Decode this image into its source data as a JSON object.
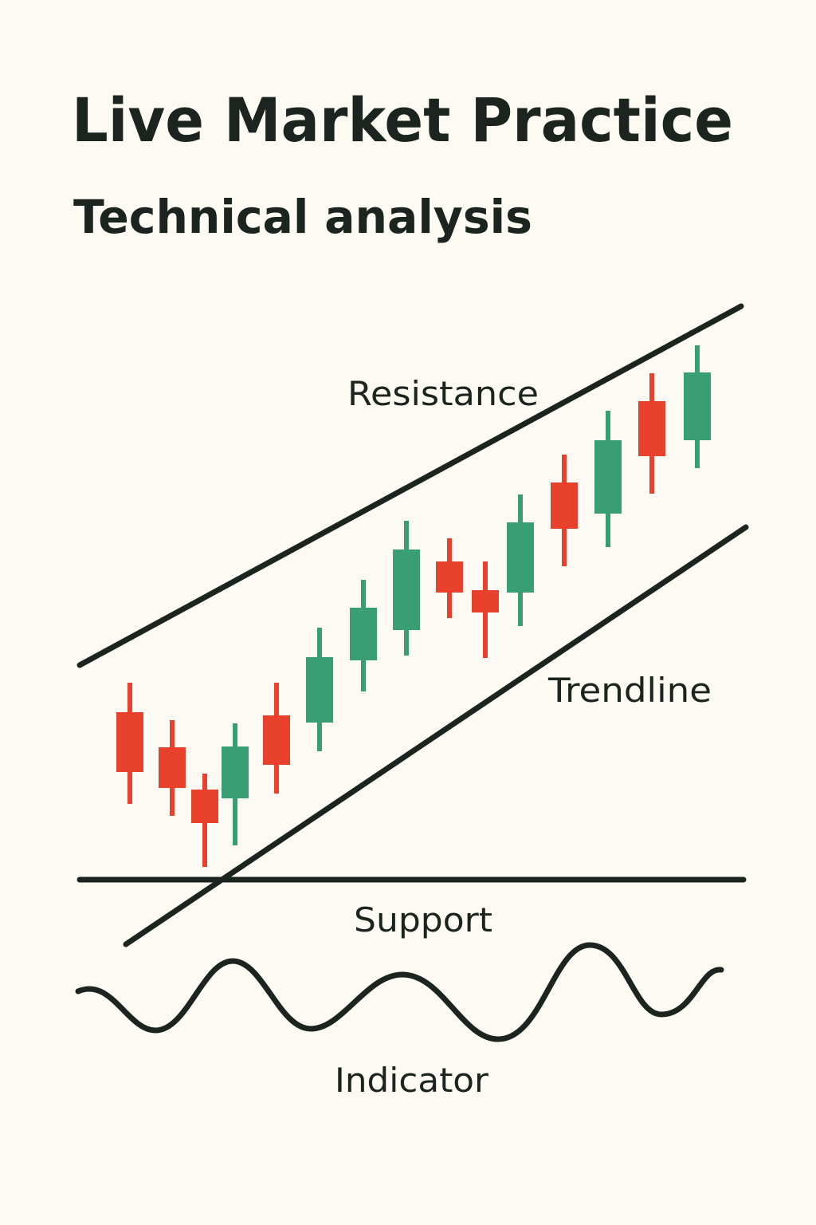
{
  "header": {
    "title": "Live Market Practice",
    "subtitle": "Technical analysis"
  },
  "labels": {
    "resistance": "Resistance",
    "trendline": "Trendline",
    "support": "Support",
    "indicator": "Indicator"
  }
}
